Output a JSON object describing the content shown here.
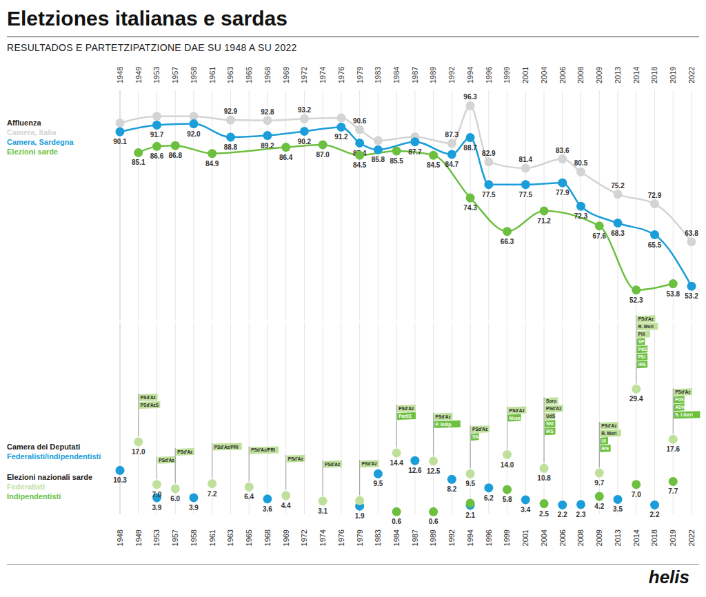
{
  "title": "Eletziones italianas e sardas",
  "subtitle": "RESULTADOS E PARTETZIPATZIONE DAE SU 1948 A SU 2022",
  "logo": "helis",
  "chart_data": [
    {
      "type": "line",
      "title": "Affluenza",
      "legend": "left",
      "grid": true,
      "tick_labels": "x",
      "data_labels": true,
      "categories": [
        "1948",
        "1949",
        "1953",
        "1957",
        "1958",
        "1961",
        "1963",
        "1965",
        "1968",
        "1969",
        "1972",
        "1974",
        "1976",
        "1979",
        "1983",
        "1984",
        "1987",
        "1989",
        "1992",
        "1994",
        "1996",
        "1999",
        "2001",
        "2004",
        "2006",
        "2008",
        "2009",
        "2013",
        "2014",
        "2018",
        "2019",
        "2022"
      ],
      "ylim": [
        45,
        100
      ],
      "series": [
        {
          "name": "Camera, Italia",
          "color": "#d4d4d4",
          "marker": "circle",
          "line_style": "solid",
          "values": [
            92.2,
            null,
            93.8,
            null,
            93.8,
            null,
            92.9,
            null,
            92.8,
            null,
            93.2,
            null,
            93.4,
            90.6,
            88,
            null,
            88.9,
            null,
            87.3,
            96.3,
            82.9,
            null,
            81.4,
            null,
            83.6,
            80.5,
            null,
            75.2,
            null,
            72.9,
            null,
            63.8
          ],
          "value_labels": [
            null,
            null,
            null,
            null,
            null,
            null,
            "92.9",
            null,
            "92.8",
            null,
            "93.2",
            null,
            null,
            "90.6",
            null,
            null,
            null,
            null,
            "87.3",
            "96.3",
            "82.9",
            null,
            "81.4",
            null,
            "83.6",
            "80.5",
            null,
            "75.2",
            null,
            "72.9",
            null,
            "63.8"
          ]
        },
        {
          "name": "Camera, Sardegna",
          "color": "#1b9dd9",
          "marker": "circle",
          "line_style": "solid",
          "values": [
            90.1,
            null,
            91.7,
            null,
            92.0,
            null,
            88.8,
            null,
            89.2,
            null,
            90.2,
            null,
            91.2,
            87.4,
            85.8,
            null,
            87.7,
            null,
            84.7,
            88.7,
            77.5,
            null,
            77.5,
            null,
            77.9,
            72.3,
            null,
            68.3,
            null,
            65.5,
            null,
            53.2
          ],
          "value_labels": [
            "90.1",
            null,
            "91.7",
            null,
            "92.0",
            null,
            "88.8",
            null,
            "89.2",
            null,
            "90.2",
            null,
            "91.2",
            "87.4",
            "85.8",
            null,
            "87.7",
            null,
            "84.7",
            "88.7",
            "77.5",
            null,
            "77.5",
            null,
            "77.9",
            "72.3",
            null,
            "68.3",
            null,
            "65.5",
            null,
            "53.2"
          ]
        },
        {
          "name": "Elezioni sarde",
          "color": "#6cbf3f",
          "marker": "circle",
          "line_style": "solid",
          "values": [
            null,
            85.1,
            86.6,
            86.8,
            null,
            84.9,
            null,
            null,
            null,
            86.4,
            null,
            87.0,
            null,
            84.5,
            null,
            85.5,
            null,
            84.5,
            null,
            74.3,
            null,
            66.3,
            null,
            71.2,
            null,
            null,
            67.6,
            null,
            52.3,
            null,
            53.8,
            null
          ],
          "value_labels": [
            null,
            "85.1",
            "86.6",
            "86.8",
            null,
            "84.9",
            null,
            null,
            null,
            "86.4",
            null,
            "87.0",
            null,
            "84.5",
            null,
            "85.5",
            null,
            "84.5",
            null,
            "74.3",
            null,
            "66.3",
            null,
            "71.2",
            null,
            null,
            "67.6",
            null,
            "52.3",
            null,
            "53.8",
            null
          ]
        }
      ]
    },
    {
      "type": "scatter",
      "legend": "left",
      "grid": true,
      "tick_labels": "x",
      "data_labels": true,
      "legend_groups": [
        {
          "title": "Camera dei Deputati",
          "series": [
            "Federalisti/indipendentisti"
          ]
        },
        {
          "title": "Elezioni nazionali sarde",
          "series": [
            "Federalisti",
            "Indipendentisti"
          ]
        }
      ],
      "categories": [
        "1948",
        "1949",
        "1953",
        "1957",
        "1958",
        "1961",
        "1963",
        "1965",
        "1968",
        "1969",
        "1972",
        "1974",
        "1976",
        "1979",
        "1983",
        "1984",
        "1987",
        "1989",
        "1992",
        "1994",
        "1996",
        "1999",
        "2001",
        "2004",
        "2006",
        "2008",
        "2009",
        "2013",
        "2014",
        "2018",
        "2019",
        "2022"
      ],
      "ylim": [
        0,
        45
      ],
      "series": [
        {
          "name": "Federalisti/indipendentisti",
          "color": "#1b9dd9",
          "marker": "circle",
          "values": [
            10.3,
            null,
            3.9,
            null,
            3.9,
            null,
            null,
            null,
            3.6,
            null,
            null,
            null,
            null,
            1.9,
            9.5,
            null,
            12.6,
            null,
            8.2,
            2.1,
            6.2,
            null,
            3.4,
            null,
            2.2,
            2.3,
            null,
            3.5,
            null,
            2.2,
            null,
            null
          ],
          "value_labels": [
            "10.3",
            null,
            "3.9",
            null,
            "3.9",
            null,
            null,
            null,
            "3.6",
            null,
            null,
            null,
            null,
            "1.9",
            "9.5",
            null,
            "12.6",
            null,
            "8.2",
            "2.1",
            "6.2",
            null,
            "3.4",
            null,
            "2.2",
            "2.3",
            null,
            "3.5",
            null,
            "2.2",
            null,
            null
          ]
        },
        {
          "name": "Federalisti",
          "color": "#bfe09b",
          "marker": "circle",
          "values": [
            null,
            17.0,
            7.0,
            6.0,
            null,
            7.2,
            null,
            6.4,
            null,
            4.4,
            null,
            3.1,
            null,
            3.2,
            null,
            14.4,
            null,
            12.5,
            null,
            9.5,
            null,
            14.0,
            null,
            10.8,
            null,
            null,
            9.7,
            null,
            29.4,
            null,
            17.6,
            null
          ],
          "value_labels": [
            null,
            "17.0",
            "7.0",
            "6.0",
            null,
            "7.2",
            null,
            "6.4",
            null,
            "4.4",
            null,
            "3.1",
            null,
            null,
            null,
            "14.4",
            null,
            "12.5",
            null,
            "9.5",
            null,
            "14.0",
            null,
            "10.8",
            null,
            null,
            "9.7",
            null,
            "29.4",
            null,
            "17.6",
            null
          ]
        },
        {
          "name": "Indipendentisti",
          "color": "#6cbf3f",
          "marker": "circle",
          "values": [
            null,
            null,
            null,
            null,
            null,
            null,
            null,
            null,
            null,
            null,
            null,
            null,
            null,
            null,
            null,
            0.6,
            null,
            0.6,
            null,
            2.6,
            null,
            5.8,
            null,
            2.5,
            null,
            null,
            4.2,
            null,
            7.0,
            null,
            7.7,
            null
          ],
          "value_labels": [
            null,
            null,
            null,
            null,
            null,
            null,
            null,
            null,
            null,
            null,
            null,
            null,
            null,
            null,
            null,
            "0.6",
            null,
            "0.6",
            null,
            null,
            null,
            "5.8",
            null,
            "2.5",
            null,
            null,
            "4.2",
            null,
            "7.0",
            null,
            "7.7",
            null
          ]
        }
      ],
      "annotations": [
        {
          "x": "1949",
          "labels": [
            {
              "text": "PSd'Az",
              "series": "Federalisti"
            },
            {
              "text": "PSd'AzS",
              "series": "Federalisti"
            }
          ]
        },
        {
          "x": "1953",
          "labels": [
            {
              "text": "PSd'Az",
              "series": "Federalisti"
            }
          ]
        },
        {
          "x": "1957",
          "labels": [
            {
              "text": "PSd'Az",
              "series": "Federalisti"
            }
          ]
        },
        {
          "x": "1961",
          "labels": [
            {
              "text": "PSd'Az/PRI",
              "series": "Federalisti"
            }
          ]
        },
        {
          "x": "1965",
          "labels": [
            {
              "text": "PSd'Az/PRI",
              "series": "Federalisti"
            }
          ]
        },
        {
          "x": "1969",
          "labels": [
            {
              "text": "PSd'Az",
              "series": "Federalisti"
            }
          ]
        },
        {
          "x": "1974",
          "labels": [
            {
              "text": "PSd'Az",
              "series": "Federalisti"
            }
          ]
        },
        {
          "x": "1979",
          "labels": [
            {
              "text": "PSd'Az",
              "series": "Federalisti"
            }
          ]
        },
        {
          "x": "1984",
          "labels": [
            {
              "text": "PSd'Az",
              "series": "Federalisti"
            },
            {
              "text": "PartiS",
              "series": "Indipendentisti"
            }
          ]
        },
        {
          "x": "1989",
          "labels": [
            {
              "text": "PSd'Az",
              "series": "Federalisti"
            },
            {
              "text": "P. Indip.",
              "series": "Indipendentisti"
            }
          ]
        },
        {
          "x": "1994",
          "labels": [
            {
              "text": "PSd'Az",
              "series": "Federalisti"
            },
            {
              "text": "SN",
              "series": "Indipendentisti"
            }
          ]
        },
        {
          "x": "1999",
          "labels": [
            {
              "text": "PSd'Az",
              "series": "Federalisti"
            },
            {
              "text": "Mesa",
              "series": "Indipendentisti"
            }
          ]
        },
        {
          "x": "2004",
          "labels": [
            {
              "text": "Soru",
              "series": "Federalisti"
            },
            {
              "text": "PSd'Az",
              "series": "Federalisti"
            },
            {
              "text": "UdS",
              "series": "Federalisti"
            },
            {
              "text": "SNI",
              "series": "Indipendentisti"
            },
            {
              "text": "iRS",
              "series": "Indipendentisti"
            }
          ]
        },
        {
          "x": "2009",
          "labels": [
            {
              "text": "PSd'Az",
              "series": "Federalisti"
            },
            {
              "text": "R. Mori",
              "series": "Federalisti"
            },
            {
              "text": "UI",
              "series": "Indipendentisti"
            },
            {
              "text": "iRS",
              "series": "Indipendentisti"
            }
          ]
        },
        {
          "x": "2014",
          "labels": [
            {
              "text": "PSd'Az",
              "series": "Federalisti"
            },
            {
              "text": "R. Mori",
              "series": "Federalisti"
            },
            {
              "text": "Pili",
              "series": "Federalisti"
            },
            {
              "text": "SP",
              "series": "Indipendentisti"
            },
            {
              "text": "PdS",
              "series": "Indipendentisti"
            },
            {
              "text": "FIU",
              "series": "Indipendentisti"
            },
            {
              "text": "iRS",
              "series": "Indipendentisti"
            }
          ]
        },
        {
          "x": "2019",
          "labels": [
            {
              "text": "PSd'Az",
              "series": "Federalisti"
            },
            {
              "text": "PdS",
              "series": "Indipendentisti"
            },
            {
              "text": "ADN",
              "series": "Indipendentisti"
            },
            {
              "text": "S. Liberi",
              "series": "Indipendentisti"
            }
          ]
        }
      ]
    }
  ]
}
